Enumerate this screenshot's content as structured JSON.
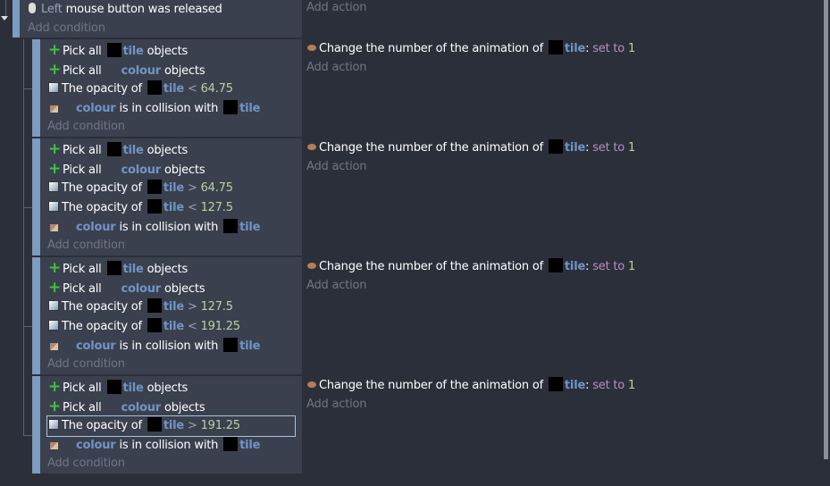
{
  "top_event": {
    "condition": {
      "param": "Left",
      "text": "mouse button was released"
    },
    "add_condition": "Add condition",
    "add_action": "Add action"
  },
  "labels": {
    "pick_all": "Pick all",
    "objects": "objects",
    "opacity_of": "The opacity of",
    "collision": "is in collision with",
    "tile": "tile",
    "colour": "colour",
    "add_condition": "Add condition",
    "add_action": "Add action",
    "action_text": "Change the number of the animation of",
    "set_to": "set to",
    "colon": ":"
  },
  "sub_events": [
    {
      "opacity": [
        {
          "op": "<",
          "value": "64.75"
        }
      ],
      "action_value": "1"
    },
    {
      "opacity": [
        {
          "op": ">",
          "value": "64.75"
        },
        {
          "op": "<",
          "value": "127.5"
        }
      ],
      "action_value": "1"
    },
    {
      "opacity": [
        {
          "op": ">",
          "value": "127.5"
        },
        {
          "op": "<",
          "value": "191.25"
        }
      ],
      "action_value": "1"
    },
    {
      "opacity": [
        {
          "op": ">",
          "value": "191.25",
          "selected": true
        }
      ],
      "action_value": "1"
    }
  ]
}
